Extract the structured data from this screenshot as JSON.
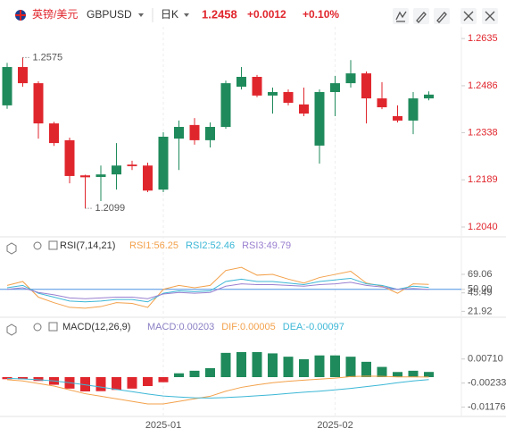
{
  "header": {
    "pair": "英镑/美元",
    "symbol": "GBPUSD",
    "period": "日K",
    "price": "1.2458",
    "change": "+0.0012",
    "change_pct": "+0.10%"
  },
  "chart_data": [
    {
      "type": "candlestick",
      "up_color": "#1f8a5b",
      "down_color": "#e0262d",
      "categories": [
        null,
        null,
        null,
        null,
        null,
        null,
        null,
        null,
        null,
        null,
        "2025-01",
        null,
        null,
        null,
        null,
        null,
        null,
        null,
        null,
        null,
        null,
        "2025-02",
        null,
        null,
        null,
        null,
        null,
        null
      ],
      "open": [
        1.2424,
        1.2545,
        1.2494,
        1.2367,
        1.2314,
        1.2203,
        1.2198,
        1.2206,
        1.2237,
        1.2234,
        1.2158,
        1.2319,
        1.2362,
        1.2314,
        1.2356,
        1.2483,
        1.2514,
        1.2455,
        1.2466,
        1.2427,
        1.2297,
        1.2466,
        1.2494,
        1.2525,
        1.2446,
        1.239,
        1.2376,
        1.2446
      ],
      "high": [
        1.2558,
        1.2575,
        1.25,
        1.2372,
        1.2322,
        1.2205,
        1.2234,
        1.2305,
        1.2249,
        1.2243,
        1.2339,
        1.2376,
        1.2384,
        1.237,
        1.2502,
        1.2545,
        1.252,
        1.248,
        1.2474,
        1.248,
        1.2474,
        1.2517,
        1.2567,
        1.2531,
        1.2497,
        1.2424,
        1.2466,
        1.2468
      ],
      "low": [
        1.2413,
        1.2483,
        1.2319,
        1.2296,
        1.2178,
        1.2099,
        1.2122,
        1.2158,
        1.222,
        1.215,
        1.215,
        1.222,
        1.23,
        1.2291,
        1.235,
        1.2474,
        1.245,
        1.2398,
        1.2424,
        1.239,
        1.224,
        1.239,
        1.248,
        1.2367,
        1.2412,
        1.237,
        1.2333,
        1.244
      ],
      "close": [
        1.2545,
        1.2494,
        1.2367,
        1.2305,
        1.2201,
        1.2197,
        1.2206,
        1.2234,
        1.2232,
        1.2155,
        1.2325,
        1.2356,
        1.2314,
        1.2356,
        1.2494,
        1.2514,
        1.2455,
        1.2466,
        1.2432,
        1.2398,
        1.2466,
        1.2494,
        1.2525,
        1.2446,
        1.2418,
        1.2376,
        1.2446,
        1.2458
      ],
      "ylim": [
        1.2009,
        1.2672
      ],
      "yticks": [
        1.2635,
        1.2486,
        1.2338,
        1.2189,
        {
          "value": 1.204,
          "label": "1.2040"
        }
      ]
    },
    {
      "type": "line",
      "title": "RSI(7,14,21)",
      "ylim": [
        14.4,
        96.4
      ],
      "yticks": [
        69.06,
        {
          "value": 50,
          "label": "50.00"
        },
        45.49,
        21.92
      ],
      "reference_line": 50,
      "reference_color": "#4a90e2",
      "series": [
        {
          "name": "RSI1:56.25",
          "color": "#f3a14b",
          "values": [
            55,
            60,
            40,
            33,
            27,
            26,
            28,
            33,
            32,
            27,
            50,
            55,
            52,
            55,
            74,
            78,
            68,
            69,
            63,
            58,
            65,
            69,
            73,
            58,
            54,
            45,
            57,
            56.25
          ]
        },
        {
          "name": "RSI2:52.46",
          "color": "#3cb7d6",
          "values": [
            52,
            55,
            45,
            40,
            35,
            34,
            35,
            37,
            37,
            34,
            45,
            48,
            47,
            48,
            60,
            63,
            60,
            60,
            58,
            56,
            60,
            62,
            64,
            57,
            55,
            50,
            54,
            52.46
          ]
        },
        {
          "name": "RSI3:49.79",
          "color": "#9a80d0",
          "values": [
            50,
            52,
            46,
            43,
            39,
            38,
            39,
            40,
            40,
            38,
            44,
            46,
            45,
            46,
            54,
            57,
            56,
            56,
            55,
            54,
            56,
            57,
            59,
            55,
            53,
            50,
            51,
            49.79
          ]
        }
      ]
    },
    {
      "type": "macd",
      "title": "MACD(12,26,9)",
      "ylim": [
        -0.0154,
        0.0161
      ],
      "yticks": [
        {
          "value": 0.0071,
          "label": "0.00710"
        },
        -0.00233,
        -0.01176
      ],
      "up_color": "#1f8a5b",
      "down_color": "#e0262d",
      "series": [
        {
          "name": "MACD:0.00203",
          "type": "bar",
          "color": "#8a80c4",
          "values": [
            -0.0008,
            -0.0008,
            -0.0015,
            -0.003,
            -0.0045,
            -0.0056,
            -0.0055,
            -0.005,
            -0.0045,
            -0.0035,
            -0.002,
            0.0015,
            0.0025,
            0.0035,
            0.0095,
            0.0098,
            0.0098,
            0.0093,
            0.008,
            0.007,
            0.0085,
            0.0085,
            0.008,
            0.006,
            0.004,
            0.002,
            0.0025,
            0.00203
          ]
        },
        {
          "name": "DIF:0.00005",
          "color": "#f3a14b",
          "values": [
            -0.001,
            -0.0015,
            -0.0025,
            -0.0035,
            -0.005,
            -0.0065,
            -0.0075,
            -0.0085,
            -0.0095,
            -0.0105,
            -0.0105,
            -0.0095,
            -0.0085,
            -0.0075,
            -0.0055,
            -0.004,
            -0.003,
            -0.0022,
            -0.0016,
            -0.0012,
            -0.0008,
            -0.0004,
            0.0002,
            0.0004,
            0.0003,
            0.0001,
            0.0001,
            5e-05
          ]
        },
        {
          "name": "DEA:-0.00097",
          "color": "#3cb7d6",
          "values": [
            -0.0005,
            -0.0007,
            -0.001,
            -0.0015,
            -0.0022,
            -0.003,
            -0.0039,
            -0.0048,
            -0.0057,
            -0.0066,
            -0.0074,
            -0.0078,
            -0.0081,
            -0.0082,
            -0.008,
            -0.0077,
            -0.0073,
            -0.0069,
            -0.0064,
            -0.0059,
            -0.0055,
            -0.005,
            -0.0044,
            -0.0037,
            -0.003,
            -0.0022,
            -0.0015,
            -0.00097
          ]
        }
      ]
    }
  ]
}
